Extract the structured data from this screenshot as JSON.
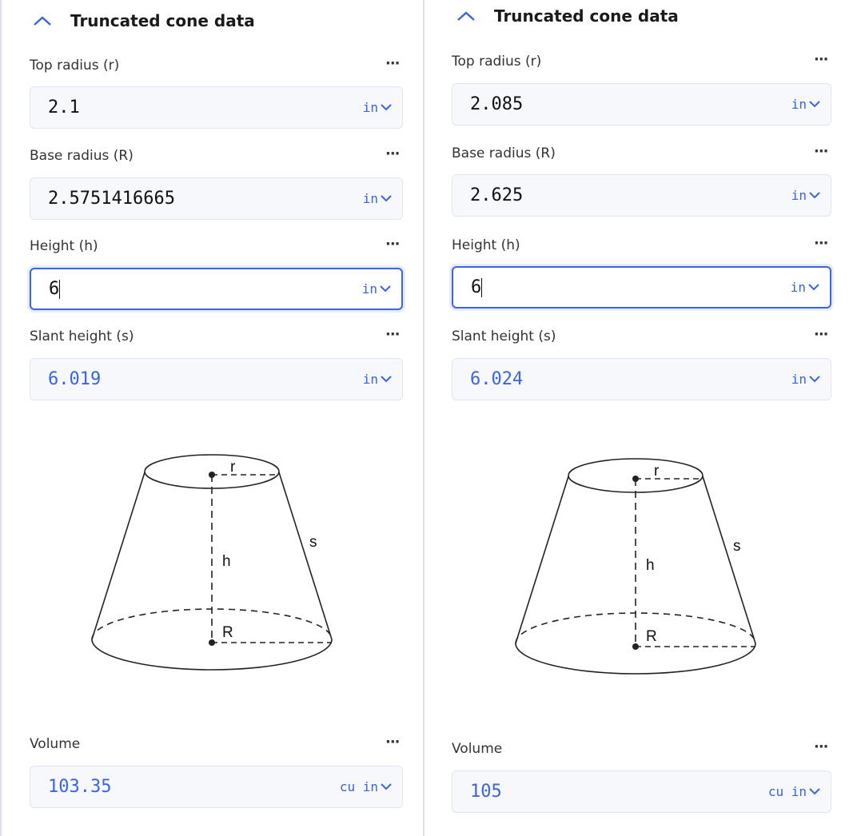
{
  "colors": {
    "accent": "#3b63e6",
    "field_bg": "#f6f8fb"
  },
  "panels": [
    {
      "title": "Truncated cone data",
      "collapse_icon": "chevron-up-icon",
      "fields": [
        {
          "label": "Top radius (r)",
          "value": "2.1",
          "unit": "in",
          "focused": false,
          "computed": false
        },
        {
          "label": "Base radius (R)",
          "value": "2.5751416665",
          "unit": "in",
          "focused": false,
          "computed": false
        },
        {
          "label": "Height (h)",
          "value": "6",
          "unit": "in",
          "focused": true,
          "computed": false
        },
        {
          "label": "Slant height (s)",
          "value": "6.019",
          "unit": "in",
          "focused": false,
          "computed": true
        }
      ],
      "diagram": {
        "labels": {
          "r": "r",
          "h": "h",
          "s": "s",
          "R": "R"
        }
      },
      "volume": {
        "label": "Volume",
        "value": "103.35",
        "unit": "cu in"
      }
    },
    {
      "title": "Truncated cone data",
      "collapse_icon": "chevron-up-icon",
      "fields": [
        {
          "label": "Top radius (r)",
          "value": "2.085",
          "unit": "in",
          "focused": false,
          "computed": false
        },
        {
          "label": "Base radius (R)",
          "value": "2.625",
          "unit": "in",
          "focused": false,
          "computed": false
        },
        {
          "label": "Height (h)",
          "value": "6",
          "unit": "in",
          "focused": true,
          "computed": false
        },
        {
          "label": "Slant height (s)",
          "value": "6.024",
          "unit": "in",
          "focused": false,
          "computed": true
        }
      ],
      "diagram": {
        "labels": {
          "r": "r",
          "h": "h",
          "s": "s",
          "R": "R"
        }
      },
      "volume": {
        "label": "Volume",
        "value": "105",
        "unit": "cu in"
      }
    }
  ]
}
